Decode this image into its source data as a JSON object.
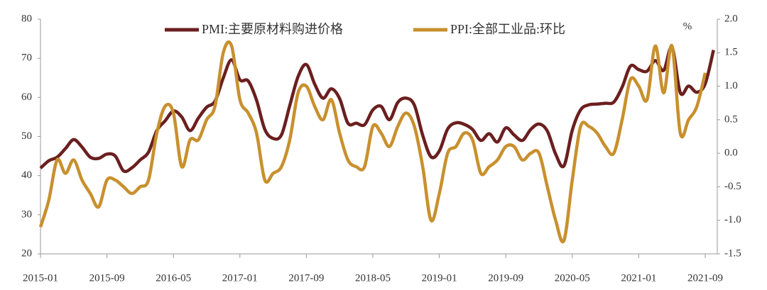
{
  "chart_data": {
    "type": "line",
    "categories": [
      "2015-01",
      null,
      null,
      null,
      null,
      null,
      null,
      null,
      "2015-09",
      null,
      null,
      null,
      null,
      null,
      null,
      null,
      "2016-05",
      null,
      null,
      null,
      null,
      null,
      null,
      null,
      "2017-01",
      null,
      null,
      null,
      null,
      null,
      null,
      null,
      "2017-09",
      null,
      null,
      null,
      null,
      null,
      null,
      null,
      "2018-05",
      null,
      null,
      null,
      null,
      null,
      null,
      null,
      "2019-01",
      null,
      null,
      null,
      null,
      null,
      null,
      null,
      "2019-09",
      null,
      null,
      null,
      null,
      null,
      null,
      null,
      "2020-05",
      null,
      null,
      null,
      null,
      null,
      null,
      null,
      "2021-01",
      null,
      null,
      null,
      null,
      null,
      null,
      null,
      "2021-09",
      null
    ],
    "series": [
      {
        "name": "PMI:主要原材料购进价格",
        "color": "#6b1f1f",
        "values": [
          41.9,
          43.8,
          44.7,
          46.9,
          49.2,
          47.3,
          44.7,
          44.4,
          45.5,
          45.0,
          41.2,
          42.0,
          44.0,
          46.0,
          51.5,
          54.0,
          56.5,
          55.0,
          51.5,
          54.7,
          57.5,
          59.0,
          65.0,
          69.6,
          64.5,
          64.2,
          59.3,
          51.8,
          49.5,
          50.4,
          57.9,
          65.3,
          68.4,
          63.4,
          59.8,
          62.2,
          59.7,
          53.4,
          53.4,
          53.0,
          56.8,
          57.7,
          54.3,
          58.7,
          59.8,
          58.0,
          50.3,
          44.8,
          46.3,
          51.9,
          53.5,
          53.1,
          51.8,
          49.0,
          50.7,
          48.6,
          52.2,
          50.4,
          49.0,
          51.8,
          53.2,
          51.4,
          45.5,
          42.5,
          51.6,
          56.8,
          58.1,
          58.3,
          58.5,
          58.8,
          62.6,
          68.0,
          67.1,
          66.7,
          69.4,
          66.9,
          72.8,
          61.2,
          62.9,
          61.3,
          63.5,
          72.1
        ]
      },
      {
        "name": "PPI:全部工业品:环比",
        "color": "#c8902e",
        "axis": "y2",
        "values": [
          -1.1,
          -0.7,
          -0.1,
          -0.3,
          -0.1,
          -0.4,
          -0.6,
          -0.8,
          -0.4,
          -0.4,
          -0.5,
          -0.6,
          -0.5,
          -0.4,
          0.3,
          0.7,
          0.6,
          -0.2,
          0.2,
          0.2,
          0.5,
          0.7,
          1.5,
          1.6,
          0.8,
          0.6,
          0.3,
          -0.4,
          -0.3,
          -0.2,
          0.2,
          0.9,
          1.0,
          0.7,
          0.5,
          0.8,
          0.3,
          -0.1,
          -0.2,
          -0.2,
          0.4,
          0.3,
          0.1,
          0.4,
          0.6,
          0.4,
          -0.2,
          -1.0,
          -0.6,
          0.0,
          0.1,
          0.3,
          0.2,
          -0.3,
          -0.2,
          -0.1,
          0.1,
          0.1,
          -0.1,
          0.0,
          0.0,
          -0.5,
          -1.0,
          -1.3,
          -0.4,
          0.4,
          0.4,
          0.3,
          0.1,
          0.0,
          0.5,
          1.1,
          1.0,
          0.8,
          1.6,
          0.9,
          1.6,
          0.3,
          0.5,
          0.7,
          1.2,
          null
        ]
      }
    ],
    "ylim": [
      20,
      80
    ],
    "yticks": [
      20,
      30,
      40,
      50,
      60,
      70,
      80
    ],
    "y2lim": [
      -1.5,
      2.0
    ],
    "y2ticks": [
      -1.5,
      -1.0,
      -0.5,
      0.0,
      0.5,
      1.0,
      1.5,
      2.0
    ],
    "y2_unit": "%"
  }
}
